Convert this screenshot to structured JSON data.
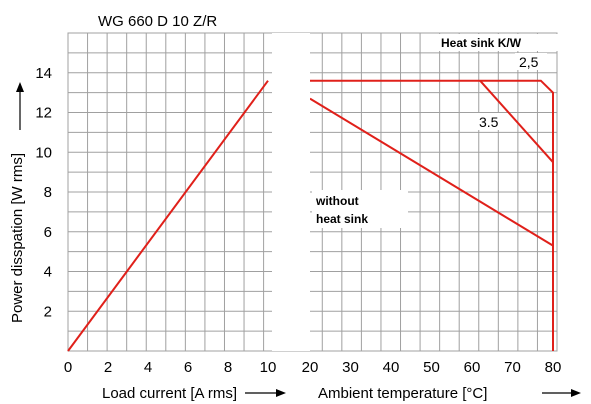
{
  "chart_data": {
    "type": "line",
    "title": "WG 660 D 10 Z/R",
    "ylabel": "Power disspation [W rms]",
    "ylim": [
      0,
      16
    ],
    "yticks": [
      "2",
      "4",
      "6",
      "8",
      "10",
      "12",
      "14"
    ],
    "grid": true,
    "left_panel": {
      "xlabel": "Load current [A rms]",
      "xlim": [
        0,
        10
      ],
      "xticks": [
        "0",
        "2",
        "4",
        "6",
        "8",
        "10"
      ],
      "series": [
        {
          "x": [
            0,
            10
          ],
          "y": [
            0,
            13.6
          ],
          "color": "#e0201a"
        }
      ]
    },
    "right_panel": {
      "xlabel": "Ambient temperature [°C]",
      "xlim": [
        20,
        80
      ],
      "xticks": [
        "20",
        "30",
        "40",
        "50",
        "60",
        "70",
        "80"
      ],
      "legend_title": "Heat sink K/W",
      "curve_labels": [
        "2,5",
        "3.5"
      ],
      "annotation": [
        "without",
        "heat sink"
      ],
      "series": [
        {
          "name": "2,5",
          "x": [
            20,
            77,
            80,
            80
          ],
          "y": [
            13.6,
            13.6,
            13.0,
            0
          ],
          "color": "#e0201a"
        },
        {
          "name": "3.5",
          "x": [
            62,
            80
          ],
          "y": [
            13.6,
            9.5
          ],
          "color": "#e0201a"
        },
        {
          "name": "without heat sink",
          "x": [
            20,
            80
          ],
          "y": [
            12.7,
            5.3
          ],
          "color": "#e0201a"
        }
      ]
    }
  }
}
